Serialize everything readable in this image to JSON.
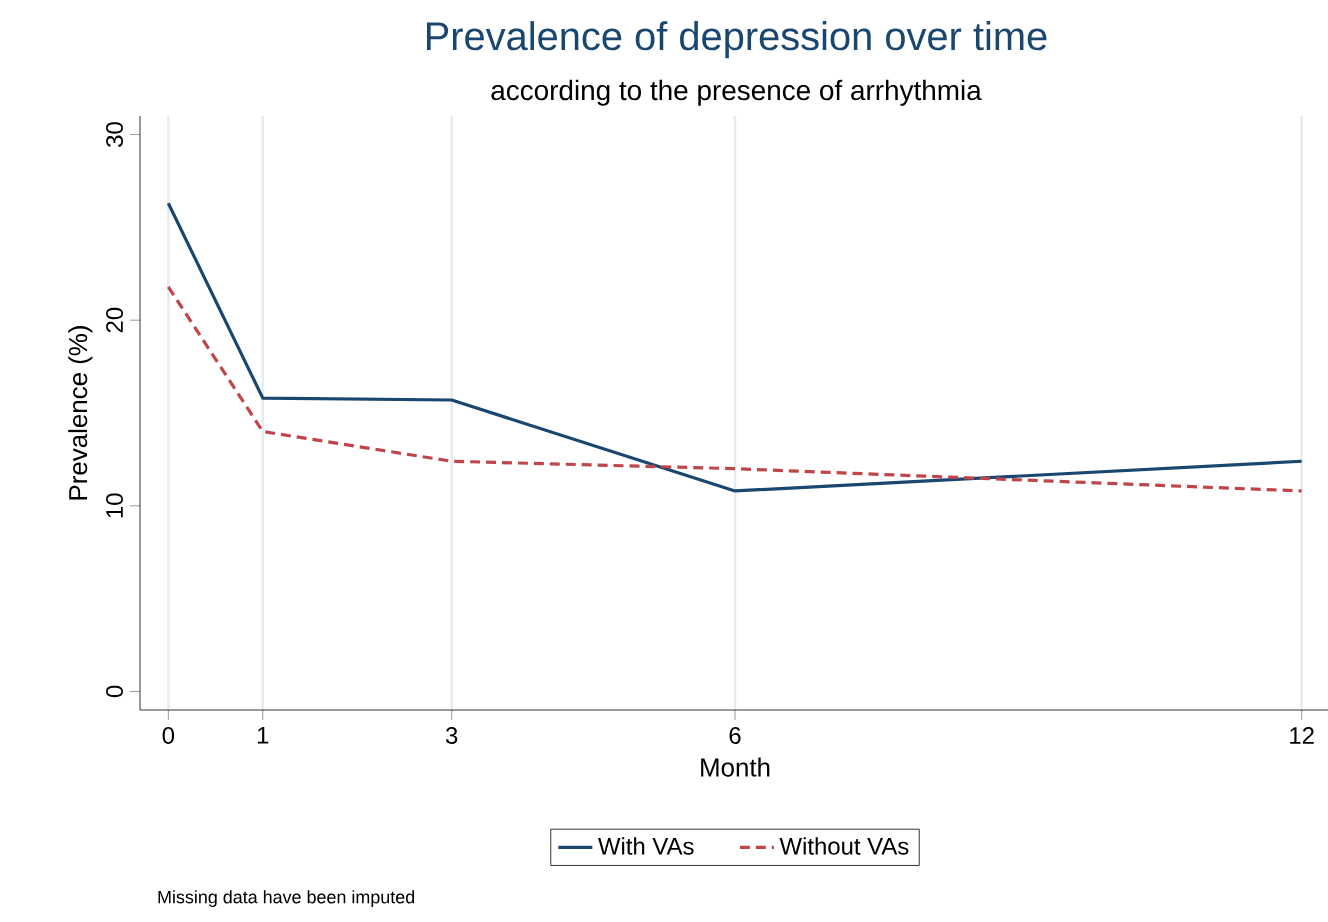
{
  "chart_data": {
    "type": "line",
    "title": "Prevalence of depression over time",
    "subtitle": "according to the presence of arrhythmia",
    "xlabel": "Month",
    "ylabel": "Prevalence (%)",
    "x": [
      0,
      1,
      3,
      6,
      12
    ],
    "series": [
      {
        "name": "With VAs",
        "color": "#1a476f",
        "line_style": "solid",
        "values": [
          26.3,
          15.8,
          15.7,
          10.8,
          12.4
        ]
      },
      {
        "name": "Without VAs",
        "color": "#c0454b",
        "line_style": "dashed",
        "values": [
          21.8,
          14.0,
          12.4,
          12.0,
          10.8
        ]
      }
    ],
    "xlim": [
      -0.3,
      12.3
    ],
    "ylim": [
      -1,
      31
    ],
    "xticks": [
      0,
      1,
      3,
      6,
      12
    ],
    "yticks": [
      0,
      10,
      20,
      30
    ],
    "grid": "x",
    "legend": "bottom",
    "marker": "none",
    "annotations": [
      "Missing data have been imputed"
    ]
  }
}
